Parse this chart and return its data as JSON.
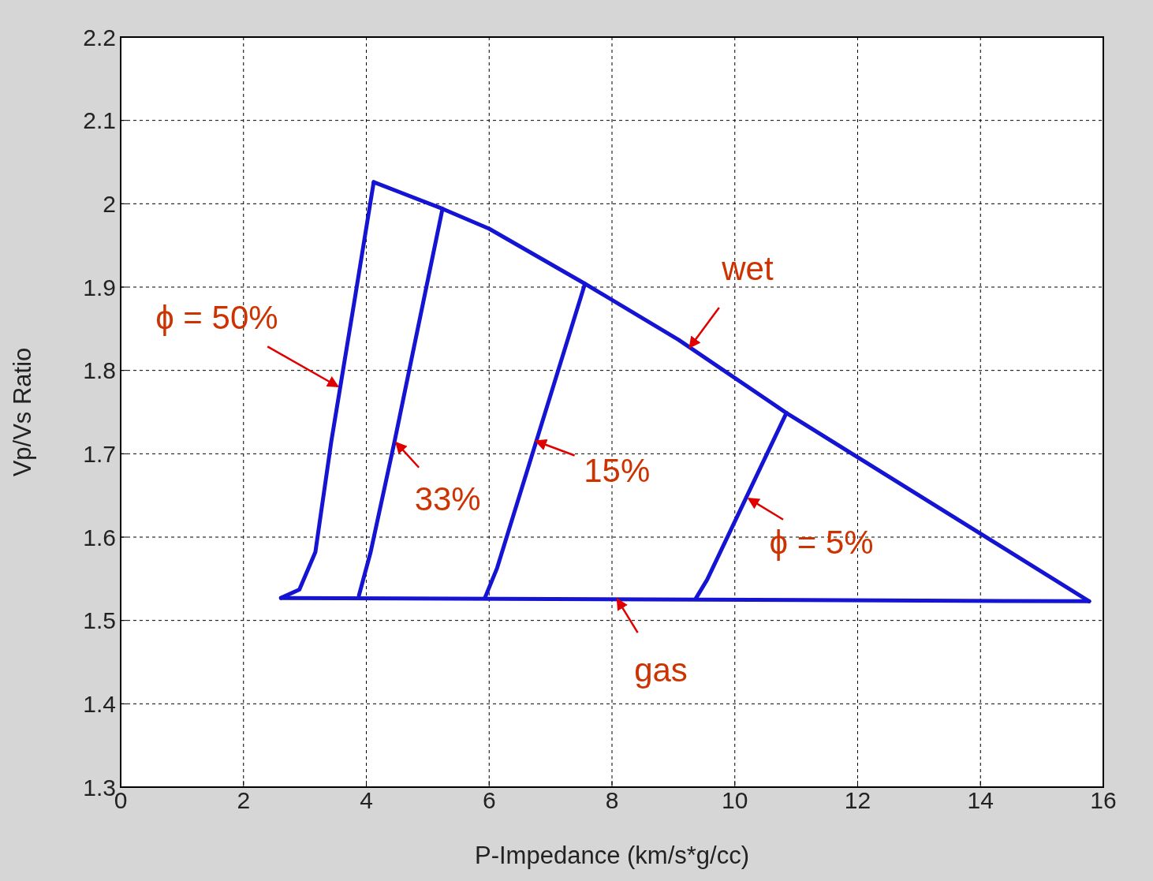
{
  "chart_data": {
    "type": "line",
    "xlabel": "P-Impedance (km/s*g/cc)",
    "ylabel": "Vp/Vs Ratio",
    "xlim": [
      0,
      16
    ],
    "xticks": [
      0,
      2,
      4,
      6,
      8,
      10,
      12,
      14,
      16
    ],
    "ylim": [
      1.3,
      2.2
    ],
    "yticks": [
      1.3,
      1.4,
      1.5,
      1.6,
      1.7,
      1.8,
      1.9,
      2,
      2.1,
      2.2
    ],
    "grid": true,
    "legend": false,
    "marker": "none",
    "line_style": "solid",
    "series": [
      {
        "color": "#1414d2",
        "x": [
          4.12,
          5.24,
          6.0,
          7.56,
          9.08,
          10.84,
          15.77
        ],
        "values": [
          2.026,
          1.994,
          1.97,
          1.904,
          1.837,
          1.749,
          1.523
        ]
      },
      {
        "color": "#1414d2",
        "x": [
          2.61,
          15.77
        ],
        "values": [
          1.527,
          1.523
        ]
      },
      {
        "color": "#1414d2",
        "x": [
          2.61,
          2.91,
          3.17,
          3.43,
          3.81,
          4.12
        ],
        "values": [
          1.527,
          1.537,
          1.582,
          1.715,
          1.885,
          2.026
        ]
      },
      {
        "color": "#1414d2",
        "x": [
          3.88,
          4.07,
          4.46,
          5.24
        ],
        "values": [
          1.53,
          1.582,
          1.715,
          1.994
        ]
      },
      {
        "color": "#1414d2",
        "x": [
          5.93,
          6.13,
          7.56
        ],
        "values": [
          1.527,
          1.563,
          1.904
        ]
      },
      {
        "color": "#1414d2",
        "x": [
          9.37,
          9.55,
          10.84
        ],
        "values": [
          1.527,
          1.549,
          1.749
        ]
      }
    ],
    "annotations": [
      {
        "text": "ϕ = 50%",
        "x": 3.53,
        "y": 1.781
      },
      {
        "text": "33%",
        "x": 4.49,
        "y": 1.713
      },
      {
        "text": "15%",
        "x": 6.77,
        "y": 1.715
      },
      {
        "text": "ϕ = 5%",
        "x": 10.23,
        "y": 1.646
      },
      {
        "text": "wet",
        "x": 9.27,
        "y": 1.828
      },
      {
        "text": "gas",
        "x": 8.09,
        "y": 1.525
      }
    ]
  }
}
